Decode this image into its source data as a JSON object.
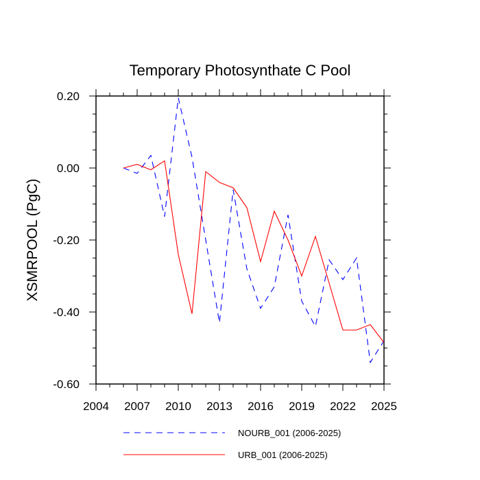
{
  "chart_data": {
    "type": "line",
    "title": "Temporary Photosynthate C Pool",
    "xlabel": "",
    "ylabel": "XSMRPOOL  (PgC)",
    "xlim": [
      2004,
      2025
    ],
    "ylim": [
      -0.6,
      0.2
    ],
    "x_ticks": [
      2004,
      2007,
      2010,
      2013,
      2016,
      2019,
      2022,
      2025
    ],
    "x_tick_labels": [
      "2004",
      "2007",
      "2010",
      "2013",
      "2016",
      "2019",
      "2022",
      "2025"
    ],
    "y_ticks": [
      -0.6,
      -0.4,
      -0.2,
      0.0,
      0.2
    ],
    "y_tick_labels": [
      "-0.60",
      "-0.40",
      "-0.20",
      "0.00",
      "0.20"
    ],
    "grid": false,
    "legend_position": "bottom",
    "x": [
      2006,
      2007,
      2008,
      2009,
      2010,
      2011,
      2012,
      2013,
      2014,
      2015,
      2016,
      2017,
      2018,
      2019,
      2020,
      2021,
      2022,
      2023,
      2024,
      2025
    ],
    "series": [
      {
        "name": "NOURB_001 (2006-2025)",
        "color": "#0000ff",
        "dash": "dashed",
        "values": [
          0.0,
          -0.015,
          0.035,
          -0.135,
          0.195,
          0.03,
          -0.2,
          -0.43,
          -0.06,
          -0.28,
          -0.39,
          -0.33,
          -0.13,
          -0.37,
          -0.44,
          -0.255,
          -0.31,
          -0.25,
          -0.54,
          -0.48
        ]
      },
      {
        "name": "URB_001 (2006-2025)",
        "color": "#ff0000",
        "dash": "solid",
        "values": [
          0.0,
          0.01,
          -0.005,
          0.02,
          -0.24,
          -0.405,
          -0.01,
          -0.04,
          -0.055,
          -0.11,
          -0.26,
          -0.12,
          -0.2,
          -0.3,
          -0.19,
          -0.32,
          -0.45,
          -0.45,
          -0.435,
          -0.485
        ]
      }
    ]
  }
}
